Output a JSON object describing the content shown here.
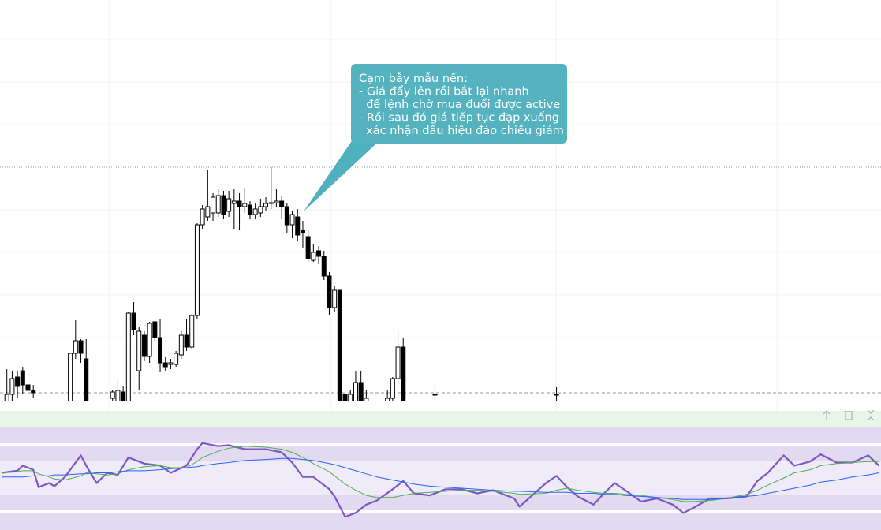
{
  "chart_data": {
    "type": "candlestick",
    "annotation_lines": [
      "Cạm bẫy mẫu nến:",
      "- Giá đẩy lên rồi bắt lại nhanh",
      "  để lệnh chờ mua đuổi được active",
      "- Rồi sau đó giá tiếp tục đạp xuống",
      "  xác nhận dấu hiệu đảo chiều giảm"
    ],
    "xlim": [
      -1.3,
      165.4
    ],
    "ylim": [
      0,
      510
    ],
    "up_color": "#ffffff",
    "down_color": "#000000",
    "wick_color": "#000000",
    "x": [
      0,
      1,
      2,
      3,
      4,
      5,
      12,
      13,
      14,
      15,
      20,
      21,
      22,
      23,
      24,
      25,
      26,
      27,
      28,
      29,
      30,
      31,
      32,
      33,
      34,
      35,
      36,
      37,
      38,
      39,
      40,
      41,
      42,
      43,
      44,
      45,
      46,
      47,
      48,
      49,
      50,
      51,
      52,
      53,
      54,
      55,
      56,
      57,
      58,
      59,
      60,
      61,
      62,
      63,
      64,
      65,
      66,
      67,
      68,
      72,
      73,
      74,
      75,
      81,
      104
    ],
    "open": [
      0,
      10,
      32,
      40,
      22,
      15,
      0,
      62,
      78,
      55,
      5,
      0,
      13,
      0,
      113,
      40,
      85,
      58,
      102,
      82,
      50,
      48,
      48,
      60,
      85,
      70,
      110,
      225,
      235,
      240,
      240,
      262,
      242,
      252,
      255,
      248,
      250,
      238,
      240,
      248,
      252,
      253,
      255,
      248,
      225,
      235,
      218,
      210,
      180,
      192,
      185,
      160,
      120,
      142,
      10,
      0,
      0,
      25,
      0,
      0,
      5,
      30,
      70,
      10,
      10
    ],
    "high": [
      42,
      40,
      40,
      45,
      32,
      22,
      62,
      104,
      80,
      80,
      15,
      30,
      20,
      115,
      127,
      95,
      90,
      102,
      103,
      105,
      57,
      55,
      65,
      90,
      105,
      112,
      227,
      250,
      295,
      265,
      270,
      268,
      268,
      270,
      265,
      272,
      255,
      252,
      258,
      260,
      298,
      270,
      262,
      252,
      242,
      245,
      230,
      218,
      200,
      198,
      192,
      165,
      148,
      142,
      15,
      15,
      40,
      40,
      15,
      15,
      32,
      92,
      82,
      27,
      19
    ],
    "low": [
      0,
      0,
      5,
      10,
      5,
      5,
      0,
      55,
      50,
      0,
      0,
      0,
      0,
      0,
      85,
      15,
      52,
      50,
      78,
      38,
      40,
      42,
      45,
      55,
      65,
      68,
      105,
      220,
      230,
      230,
      235,
      232,
      235,
      220,
      218,
      240,
      232,
      232,
      235,
      242,
      245,
      248,
      232,
      215,
      208,
      205,
      195,
      178,
      178,
      175,
      155,
      110,
      115,
      0,
      0,
      0,
      0,
      0,
      0,
      0,
      0,
      20,
      0,
      0,
      0
    ],
    "close": [
      10,
      30,
      20,
      22,
      15,
      12,
      62,
      78,
      62,
      0,
      13,
      15,
      0,
      113,
      92,
      90,
      58,
      100,
      82,
      50,
      45,
      50,
      62,
      85,
      70,
      110,
      225,
      245,
      248,
      260,
      262,
      238,
      258,
      255,
      248,
      252,
      238,
      245,
      248,
      252,
      253,
      255,
      248,
      225,
      238,
      212,
      215,
      182,
      190,
      185,
      160,
      120,
      142,
      0,
      0,
      10,
      25,
      0,
      5,
      5,
      30,
      70,
      0,
      10,
      10
    ],
    "indicator": {
      "ylim": [
        0,
        100
      ],
      "x": [
        -1,
        2,
        3,
        5,
        6,
        8,
        9,
        11,
        14,
        15,
        17,
        19,
        21,
        23,
        26,
        29,
        31,
        34,
        36,
        37,
        40,
        42,
        45,
        49,
        52,
        54,
        56,
        58,
        61,
        62,
        64,
        66,
        68,
        70,
        73,
        75,
        77,
        80,
        83,
        86,
        89,
        92,
        96,
        97,
        102,
        104,
        106,
        108,
        111,
        113,
        115,
        117,
        120,
        123,
        126,
        128,
        130,
        133,
        136,
        140,
        142,
        144,
        147,
        149,
        152,
        154,
        157,
        160,
        163,
        165
      ],
      "series": [
        {
          "color": "#7e57c2",
          "width": 2.2,
          "values": [
            55,
            57,
            62,
            58,
            41,
            45,
            42,
            51,
            72,
            62,
            45,
            55,
            53,
            70,
            64,
            62,
            55,
            62,
            78,
            84,
            81,
            82,
            78,
            78,
            75,
            65,
            51,
            51,
            39,
            32,
            12,
            16,
            24,
            28,
            39,
            47,
            35,
            33,
            39,
            39,
            35,
            38,
            30,
            22,
            45,
            52,
            41,
            32,
            24,
            35,
            45,
            38,
            27,
            30,
            24,
            16,
            21,
            30,
            30,
            32,
            47,
            55,
            72,
            62,
            66,
            73,
            65,
            65,
            72,
            62
          ]
        },
        {
          "color": "#4caf50",
          "width": 1,
          "values": [
            55,
            56,
            57,
            57,
            54,
            51,
            49,
            48,
            52,
            55,
            54,
            53,
            54,
            58,
            61,
            62,
            60,
            60,
            66,
            70,
            76,
            79,
            81,
            80,
            78,
            75,
            70,
            64,
            56,
            52,
            44,
            38,
            33,
            31,
            31,
            33,
            35,
            36,
            37,
            38,
            38,
            37,
            35,
            34,
            35,
            38,
            40,
            38,
            36,
            35,
            35,
            34,
            33,
            31,
            29,
            27,
            27,
            28,
            30,
            34,
            38,
            43,
            50,
            55,
            58,
            62,
            64,
            65,
            66,
            66
          ]
        },
        {
          "color": "#2962ff",
          "width": 1,
          "values": [
            51,
            51,
            51,
            52,
            52,
            52,
            53,
            53,
            54,
            54,
            55,
            55,
            56,
            57,
            57,
            58,
            59,
            60,
            61,
            62,
            64,
            65,
            67,
            68,
            69,
            69,
            68,
            67,
            64,
            63,
            60,
            57,
            54,
            51,
            48,
            46,
            44,
            42,
            41,
            40,
            39,
            38,
            37,
            37,
            36,
            36,
            36,
            35,
            35,
            34,
            34,
            33,
            32,
            31,
            30,
            29,
            29,
            29,
            30,
            32,
            33,
            35,
            38,
            40,
            43,
            46,
            48,
            51,
            53,
            55
          ]
        }
      ]
    }
  }
}
